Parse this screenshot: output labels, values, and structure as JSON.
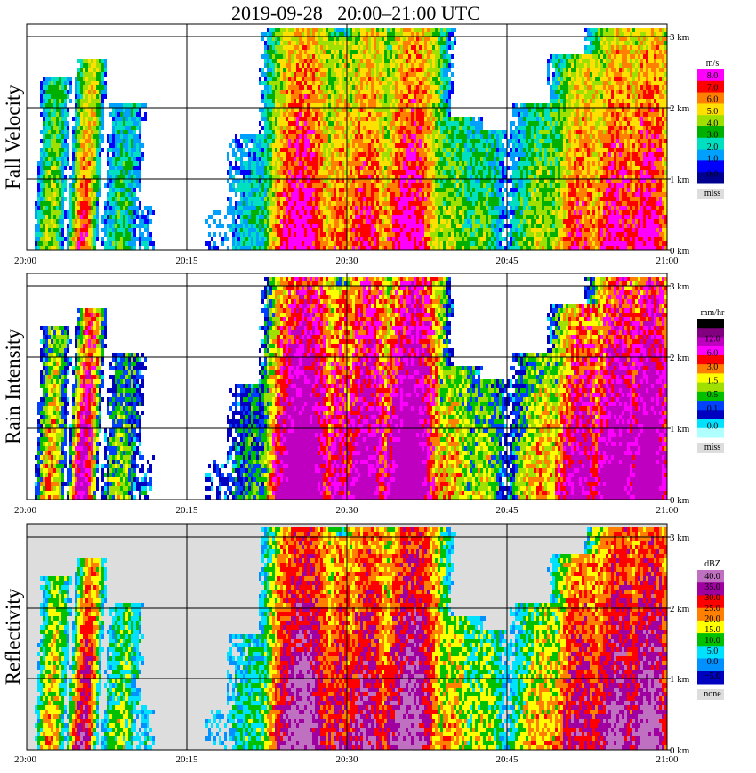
{
  "title": "2019-09-28   20:00–21:00 UTC",
  "chart_data": [
    {
      "type": "heatmap",
      "ylabel": "Fall Velocity",
      "x_ticks": [
        "20:00",
        "20:15",
        "20:30",
        "20:45",
        "21:00"
      ],
      "y_ticks": [
        "0 km",
        "1 km",
        "2 km",
        "3 km"
      ],
      "ylim_km": [
        0,
        3.2
      ],
      "legend": {
        "unit": "m/s",
        "labels": [
          "8.0",
          "7.0",
          "6.0",
          "5.0",
          "4.0",
          "3.0",
          "2.0",
          "1.0",
          "0.0"
        ],
        "colors": [
          "#ff00ff",
          "#ff0000",
          "#ff8000",
          "#ffe000",
          "#a0e000",
          "#00b000",
          "#00e0c0",
          "#00a0ff",
          "#0000ff",
          "#000090"
        ],
        "missing_label": "miss",
        "missing_color": "#dddddd"
      }
    },
    {
      "type": "heatmap",
      "ylabel": "Rain Intensity",
      "x_ticks": [
        "20:00",
        "20:15",
        "20:30",
        "20:45",
        "21:00"
      ],
      "y_ticks": [
        "0 km",
        "1 km",
        "2 km",
        "3 km"
      ],
      "ylim_km": [
        0,
        3.2
      ],
      "legend": {
        "unit": "mm/hr",
        "labels": [
          "48.0",
          "12.0",
          "6.0",
          "3.0",
          "1.5",
          "0.5",
          "0.1",
          "0.0"
        ],
        "colors": [
          "#000000",
          "#800080",
          "#c000c0",
          "#ff00ff",
          "#ff0000",
          "#ff8000",
          "#ffff00",
          "#a0e000",
          "#00c000",
          "#0040ff",
          "#0000c0",
          "#00e0ff",
          "#b0ffff"
        ],
        "missing_label": "miss",
        "missing_color": "#dddddd"
      }
    },
    {
      "type": "heatmap",
      "ylabel": "Reflectivity",
      "x_ticks": [
        "20:00",
        "20:15",
        "20:30",
        "20:45",
        "21:00"
      ],
      "y_ticks": [
        "0 km",
        "1 km",
        "2 km",
        "3 km"
      ],
      "ylim_km": [
        0,
        3.2
      ],
      "legend": {
        "unit": "dBZ",
        "labels": [
          "40.0",
          "35.0",
          "30.0",
          "25.0",
          "20.0",
          "15.0",
          "10.0",
          "5.0",
          "0.0",
          "−5.0"
        ],
        "colors": [
          "#c070c0",
          "#a000a0",
          "#ff0000",
          "#ff8000",
          "#ffff00",
          "#00c000",
          "#00e0ff",
          "#0090ff",
          "#0000c0"
        ],
        "missing_label": "none",
        "missing_color": "#dddddd"
      }
    }
  ]
}
